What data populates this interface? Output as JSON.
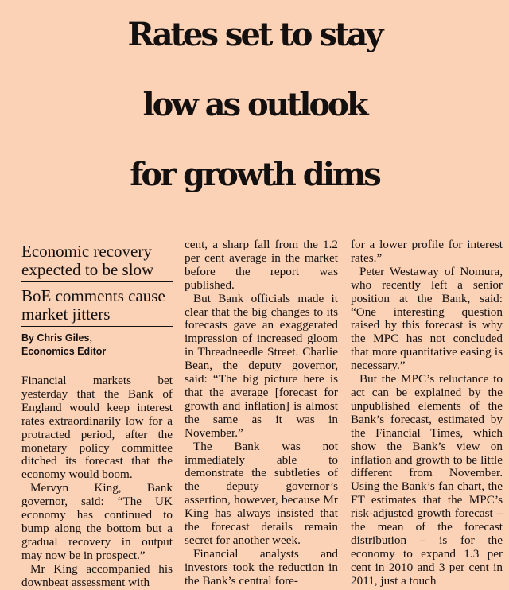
{
  "headline": {
    "line1": "Rates set to stay",
    "line2": "low as outlook",
    "line3": "for growth dims"
  },
  "decks": [
    "Economic recovery expected to be slow",
    "BoE comments cause market jitters"
  ],
  "byline": {
    "name": "By Chris Giles,",
    "role": "Economics Editor"
  },
  "column1": [
    "Financial markets bet yesterday that the Bank of England would keep interest rates extraordinarily low for a protracted period, after the monetary policy committee ditched its forecast that the economy would boom.",
    "Mervyn King, Bank governor, said: “The UK economy has continued to bump along the bottom but a gradual recovery in output may now be in prospect.”",
    "Mr King accompanied his downbeat assessment with"
  ],
  "column2": [
    "cent, a sharp fall from the 1.2 per cent average in the market before the report was published.",
    "But Bank officials made it clear that the big changes to its forecasts gave an exaggerated impression of increased gloom in Threadneedle Street. Charlie Bean, the deputy governor, said: “The big picture here is that the average [forecast for growth and inflation] is almost the same as it was in November.”",
    "The Bank was not immediately able to demonstrate the subtleties of the deputy governor’s assertion, however, because Mr King has always insisted that the forecast details remain secret for another week.",
    "Financial analysts and investors took the reduction in the Bank’s central fore-"
  ],
  "column3": [
    "for a lower profile for interest rates.”",
    "Peter Westaway of Nomura, who recently left a senior position at the Bank, said: “One interesting question raised by this forecast is why the MPC has not concluded that more quantitative easing is necessary.”",
    "But the MPC’s reluctance to act can be explained by the unpublished elements of the Bank’s forecast, estimated by the Financial Times, which show the Bank’s view on inflation and growth to be little different from November. Using the Bank’s fan chart, the FT estimates that the MPC’s risk-adjusted growth forecast – the mean of the forecast distribution – is for the economy to expand 1.3 per cent in 2010 and 3 per cent in 2011, just a touch"
  ]
}
